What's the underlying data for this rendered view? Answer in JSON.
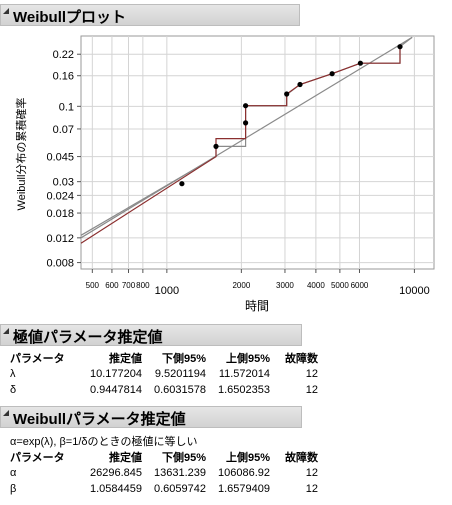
{
  "plot_section": {
    "title": "Weibullプロット",
    "xlabel": "時間",
    "ylabel": "Weibull分布の累積確率",
    "chart_data": {
      "type": "scatter",
      "x_scale": "log",
      "y_scale": "weibull",
      "x_ticks": [
        500,
        600,
        700,
        800,
        1000,
        2000,
        3000,
        4000,
        5000,
        6000,
        10000
      ],
      "x_tick_labels": [
        "500",
        "600",
        "700",
        "800",
        "1000",
        "2000",
        "3000",
        "4000",
        "5000",
        "6000",
        "10000"
      ],
      "y_ticks": [
        0.008,
        0.012,
        0.018,
        0.024,
        0.03,
        0.045,
        0.07,
        0.1,
        0.16,
        0.22
      ],
      "y_tick_labels": [
        "0.008",
        "0.012",
        "0.018",
        "0.024",
        "0.03",
        "0.045",
        "0.07",
        "0.1",
        "0.16",
        "0.22"
      ],
      "grid": true,
      "points": [
        {
          "x": 1150,
          "y": 0.029
        },
        {
          "x": 1580,
          "y": 0.053
        },
        {
          "x": 2080,
          "y": 0.077
        },
        {
          "x": 2080,
          "y": 0.101
        },
        {
          "x": 3050,
          "y": 0.121
        },
        {
          "x": 3450,
          "y": 0.14
        },
        {
          "x": 4650,
          "y": 0.165
        },
        {
          "x": 6050,
          "y": 0.193
        },
        {
          "x": 8750,
          "y": 0.245
        }
      ],
      "fit_line": [
        {
          "x": 450,
          "y": 0.012
        },
        {
          "x": 9800,
          "y": 0.28
        }
      ],
      "red_step": [
        {
          "x": 450,
          "y": 0.011
        },
        {
          "x": 1580,
          "y": 0.045
        },
        {
          "x": 1580,
          "y": 0.06
        },
        {
          "x": 2080,
          "y": 0.06
        },
        {
          "x": 2080,
          "y": 0.101
        },
        {
          "x": 3050,
          "y": 0.101
        },
        {
          "x": 3050,
          "y": 0.121
        },
        {
          "x": 3450,
          "y": 0.14
        },
        {
          "x": 4650,
          "y": 0.165
        },
        {
          "x": 6050,
          "y": 0.193
        },
        {
          "x": 8750,
          "y": 0.193
        },
        {
          "x": 8750,
          "y": 0.245
        }
      ],
      "gray_step": [
        {
          "x": 450,
          "y": 0.0125
        },
        {
          "x": 1580,
          "y": 0.045
        },
        {
          "x": 1580,
          "y": 0.053
        },
        {
          "x": 2080,
          "y": 0.053
        },
        {
          "x": 2080,
          "y": 0.077
        },
        {
          "x": 2080,
          "y": 0.101
        },
        {
          "x": 3050,
          "y": 0.101
        },
        {
          "x": 3050,
          "y": 0.12
        },
        {
          "x": 3450,
          "y": 0.14
        },
        {
          "x": 4650,
          "y": 0.165
        },
        {
          "x": 6050,
          "y": 0.193
        },
        {
          "x": 8750,
          "y": 0.193
        },
        {
          "x": 8750,
          "y": 0.245
        },
        {
          "x": 9800,
          "y": 0.28
        }
      ],
      "colors": {
        "fit": "#8a8a8a",
        "red_step": "#8b2f2f",
        "points": "#000000"
      }
    }
  },
  "extreme_section": {
    "title": "極値パラメータ推定値",
    "headers": [
      "パラメータ",
      "推定値",
      "下側95%",
      "上側95%",
      "故障数"
    ],
    "rows": [
      [
        "λ",
        "10.177204",
        "9.5201194",
        "11.572014",
        "12"
      ],
      [
        "δ",
        "0.9447814",
        "0.6031578",
        "1.6502353",
        "12"
      ]
    ]
  },
  "weibull_section": {
    "title": "Weibullパラメータ推定値",
    "note": "α=exp(λ), β=1/δのときの極値に等しい",
    "headers": [
      "パラメータ",
      "推定値",
      "下側95%",
      "上側95%",
      "故障数"
    ],
    "rows": [
      [
        "α",
        "26296.845",
        "13631.239",
        "106086.92",
        "12"
      ],
      [
        "β",
        "1.0584459",
        "0.6059742",
        "1.6579409",
        "12"
      ]
    ]
  }
}
